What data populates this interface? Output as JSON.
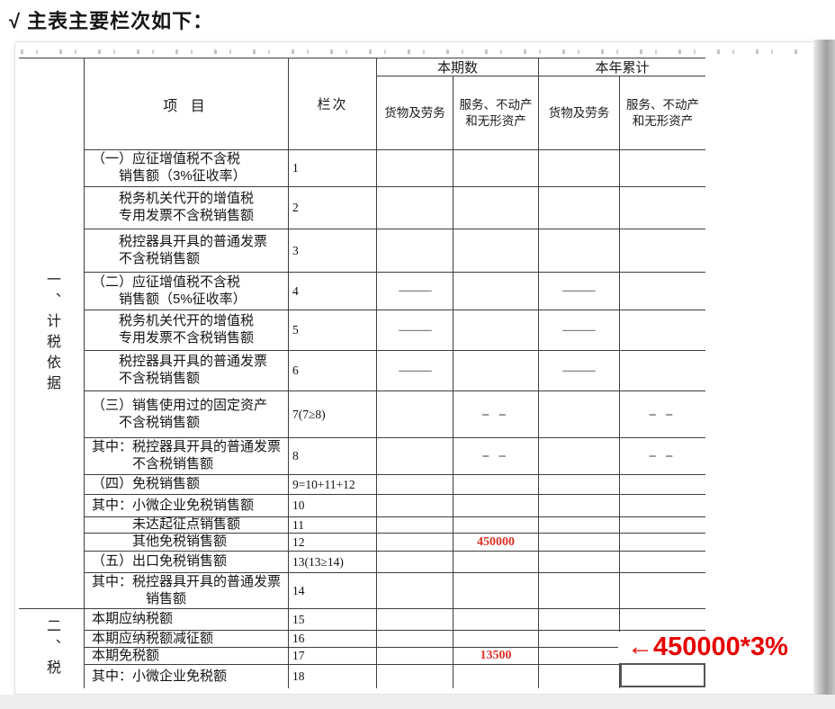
{
  "page": {
    "title": "√ 主表主要栏次如下："
  },
  "colors": {
    "value_red": "#e03128",
    "annotation_red": "#e60000",
    "table_border": "#3e3e3e"
  },
  "table": {
    "header": {
      "item": "项 目",
      "column_no": "栏次",
      "current_period": "本期数",
      "year_to_date": "本年累计"
    },
    "sub_headers": [
      [
        "货物及劳务"
      ],
      [
        "服务、不动产",
        "和无形资产"
      ],
      [
        "货物及劳务"
      ],
      [
        "服务、不动产",
        "和无形资产"
      ]
    ],
    "section1_label": "一、计税依据",
    "section2_label": "二、税",
    "annotation": "←450000*3%",
    "rows": [
      {
        "label": [
          "（一）应征增值税不含税",
          "销售额（3%征收率）"
        ],
        "ind": [
          0,
          2
        ],
        "no": "1",
        "vals": [
          "",
          "",
          "",
          ""
        ]
      },
      {
        "label": [
          "税务机关代开的增值税",
          "专用发票不含税销售额"
        ],
        "ind": [
          2,
          2
        ],
        "no": "2",
        "vals": [
          "",
          "",
          "",
          ""
        ]
      },
      {
        "label": [
          "税控器具开具的普通发票",
          "不含税销售额"
        ],
        "ind": [
          2,
          2
        ],
        "no": "3",
        "vals": [
          "",
          "",
          "",
          ""
        ]
      },
      {
        "label": [
          "（二）应征增值税不含税",
          "销售额（5%征收率）"
        ],
        "ind": [
          0,
          2
        ],
        "no": "4",
        "vals": [
          "—",
          "",
          "—",
          ""
        ]
      },
      {
        "label": [
          "税务机关代开的增值税",
          "专用发票不含税销售额"
        ],
        "ind": [
          2,
          2
        ],
        "no": "5",
        "vals": [
          "—",
          "",
          "—",
          ""
        ]
      },
      {
        "label": [
          "税控器具开具的普通发票",
          "不含税销售额"
        ],
        "ind": [
          2,
          2
        ],
        "no": "6",
        "vals": [
          "—",
          "",
          "—",
          ""
        ]
      },
      {
        "label": [
          "（三）销售使用过的固定资产",
          "不含税销售额"
        ],
        "ind": [
          0,
          2
        ],
        "no": "7(7≥8)",
        "vals": [
          "",
          "– –",
          "",
          "– –"
        ]
      },
      {
        "label": [
          "其中：税控器具开具的普通发票",
          "不含税销售额"
        ],
        "ind": [
          0,
          3
        ],
        "no": "8",
        "vals": [
          "",
          "– –",
          "",
          "– –"
        ]
      },
      {
        "label": [
          "（四）免税销售额"
        ],
        "ind": [
          0
        ],
        "no": "9=10+11+12",
        "vals": [
          "",
          "",
          "",
          ""
        ]
      },
      {
        "label": [
          "其中：小微企业免税销售额"
        ],
        "ind": [
          0
        ],
        "no": "10",
        "vals": [
          "",
          "",
          "",
          ""
        ]
      },
      {
        "label": [
          "未达起征点销售额"
        ],
        "ind": [
          3
        ],
        "no": "11",
        "vals": [
          "",
          "",
          "",
          ""
        ]
      },
      {
        "label": [
          "其他免税销售额"
        ],
        "ind": [
          3
        ],
        "no": "12",
        "vals": [
          "",
          "450000",
          "",
          ""
        ],
        "red": true
      },
      {
        "label": [
          "（五）出口免税销售额"
        ],
        "ind": [
          0
        ],
        "no": "13(13≥14)",
        "vals": [
          "",
          "",
          "",
          ""
        ]
      },
      {
        "label": [
          "其中：税控器具开具的普通发票",
          "销售额"
        ],
        "ind": [
          0,
          4
        ],
        "no": "14",
        "vals": [
          "",
          "",
          "",
          ""
        ]
      },
      {
        "label": [
          "本期应纳税额"
        ],
        "ind": [
          0
        ],
        "no": "15",
        "vals": [
          "",
          "",
          "",
          ""
        ]
      },
      {
        "label": [
          "本期应纳税额减征额"
        ],
        "ind": [
          0
        ],
        "no": "16",
        "vals": [
          "",
          "",
          "",
          ""
        ]
      },
      {
        "label": [
          "本期免税额"
        ],
        "ind": [
          0
        ],
        "no": "17",
        "vals": [
          "",
          "13500",
          "",
          ""
        ],
        "red": true
      },
      {
        "label": [
          "其中：小微企业免税额"
        ],
        "ind": [
          0
        ],
        "no": "18",
        "vals": [
          "",
          "",
          "",
          ""
        ]
      }
    ]
  }
}
